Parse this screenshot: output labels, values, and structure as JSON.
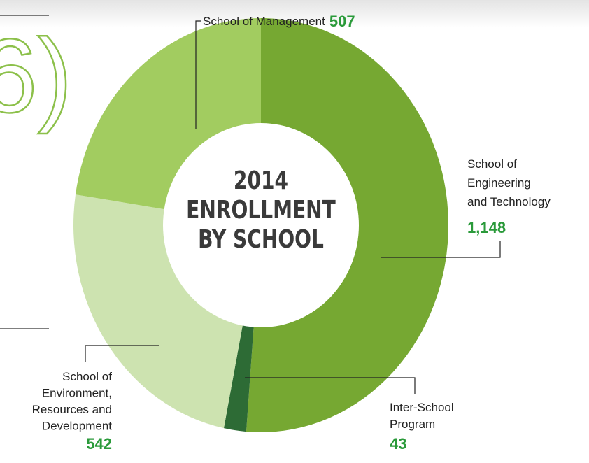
{
  "fragment_text": "6)",
  "chart_data": {
    "type": "donut",
    "title": "2014\nENROLLMENT\nBY SCHOOL",
    "categories": [
      "School of\nEngineering\nand Technology",
      "Inter-School\nProgram",
      "School of\nEnvironment,\nResources and\nDevelopment",
      "School of Management"
    ],
    "values": [
      1148,
      43,
      542,
      507
    ],
    "value_labels": [
      "1,148",
      "43",
      "542",
      "507"
    ],
    "colors": [
      "#76a832",
      "#2d6b35",
      "#cde3b0",
      "#a2cc60"
    ],
    "value_color": "#2a9a3a"
  }
}
